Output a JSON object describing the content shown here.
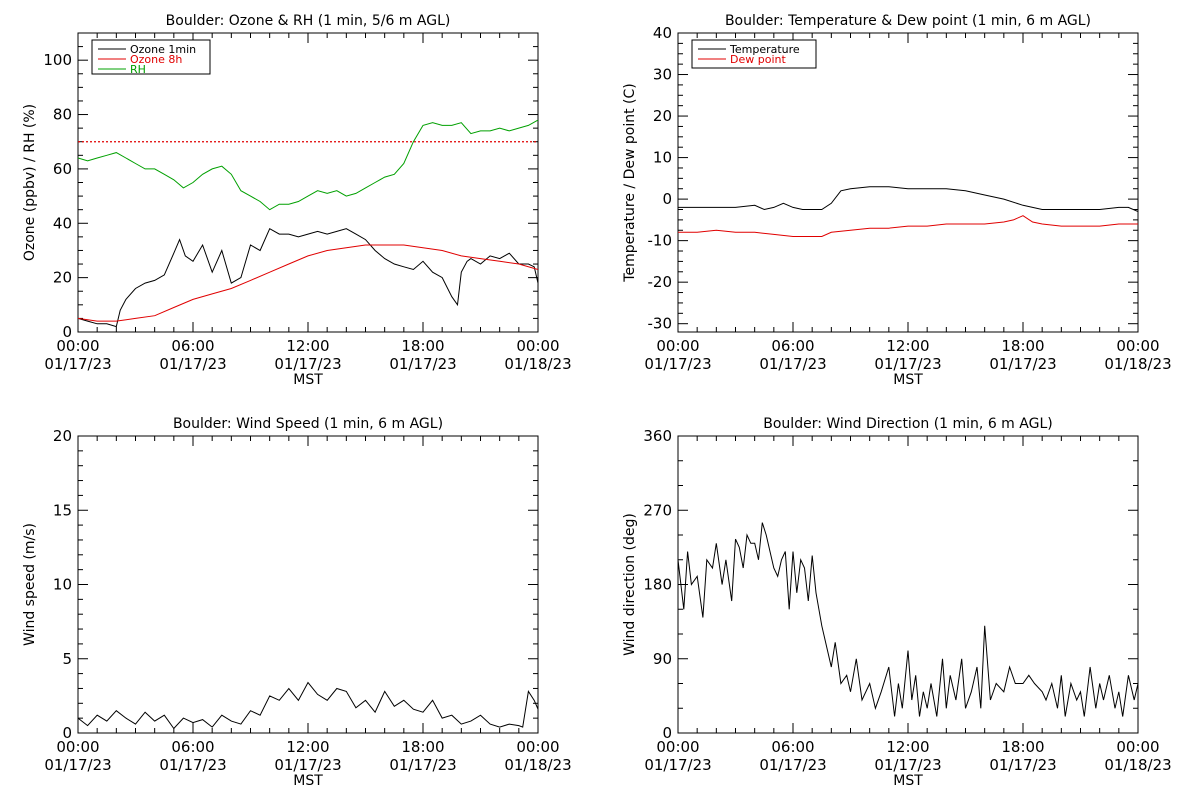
{
  "chart_data": [
    {
      "type": "line",
      "title": "Boulder: Ozone & RH (1 min, 5/6 m AGL)",
      "xlabel": "MST",
      "ylabel": "Ozone (ppbv) / RH (%)",
      "xlim": [
        0,
        24
      ],
      "ylim": [
        0,
        110
      ],
      "x_ticks": [
        0,
        6,
        12,
        18,
        24
      ],
      "x_tick_labels": [
        [
          "00:00",
          "01/17/23"
        ],
        [
          "06:00",
          "01/17/23"
        ],
        [
          "12:00",
          "01/17/23"
        ],
        [
          "18:00",
          "01/17/23"
        ],
        [
          "00:00",
          "01/18/23"
        ]
      ],
      "y_ticks": [
        0,
        20,
        40,
        60,
        80,
        100
      ],
      "legend_placement": "top-left",
      "reference_lines": [
        {
          "y": 70,
          "color": "#e00000",
          "style": "dotted"
        }
      ],
      "series": [
        {
          "name": "Ozone 1min",
          "color": "#000000",
          "x": [
            0,
            0.5,
            1,
            1.5,
            2,
            2.2,
            2.5,
            3,
            3.5,
            4,
            4.5,
            5,
            5.3,
            5.6,
            6,
            6.5,
            7,
            7.5,
            8,
            8.5,
            9,
            9.5,
            10,
            10.5,
            11,
            11.5,
            12,
            12.5,
            13,
            13.5,
            14,
            14.5,
            15,
            15.5,
            16,
            16.5,
            17,
            17.5,
            18,
            18.5,
            19,
            19.5,
            19.8,
            20,
            20.3,
            20.5,
            21,
            21.5,
            22,
            22.5,
            23,
            23.5,
            23.8,
            24
          ],
          "y": [
            5,
            4,
            3,
            3,
            2,
            8,
            12,
            16,
            18,
            19,
            21,
            29,
            34,
            28,
            26,
            32,
            22,
            30,
            18,
            20,
            32,
            30,
            38,
            36,
            36,
            35,
            36,
            37,
            36,
            37,
            38,
            36,
            34,
            30,
            27,
            25,
            24,
            23,
            26,
            22,
            20,
            13,
            10,
            22,
            26,
            27,
            25,
            28,
            27,
            29,
            25,
            25,
            24,
            18
          ]
        },
        {
          "name": "Ozone 8h",
          "color": "#e00000",
          "x": [
            0,
            1,
            2,
            3,
            4,
            5,
            6,
            7,
            8,
            9,
            10,
            11,
            12,
            13,
            14,
            15,
            16,
            17,
            18,
            19,
            20,
            21,
            22,
            23,
            24
          ],
          "y": [
            5,
            4,
            4,
            5,
            6,
            9,
            12,
            14,
            16,
            19,
            22,
            25,
            28,
            30,
            31,
            32,
            32,
            32,
            31,
            30,
            28,
            27,
            26,
            25,
            23
          ]
        },
        {
          "name": "RH",
          "color": "#00a000",
          "x": [
            0,
            0.5,
            1,
            1.5,
            2,
            2.5,
            3,
            3.5,
            4,
            4.5,
            5,
            5.5,
            6,
            6.5,
            7,
            7.5,
            8,
            8.5,
            9,
            9.5,
            10,
            10.5,
            11,
            11.5,
            12,
            12.5,
            13,
            13.5,
            14,
            14.5,
            15,
            15.5,
            16,
            16.5,
            17,
            17.5,
            18,
            18.5,
            19,
            19.5,
            20,
            20.5,
            21,
            21.5,
            22,
            22.5,
            23,
            23.5,
            24
          ],
          "y": [
            64,
            63,
            64,
            65,
            66,
            64,
            62,
            60,
            60,
            58,
            56,
            53,
            55,
            58,
            60,
            61,
            58,
            52,
            50,
            48,
            45,
            47,
            47,
            48,
            50,
            52,
            51,
            52,
            50,
            51,
            53,
            55,
            57,
            58,
            62,
            70,
            76,
            77,
            76,
            76,
            77,
            73,
            74,
            74,
            75,
            74,
            75,
            76,
            78
          ]
        }
      ]
    },
    {
      "type": "line",
      "title": "Boulder: Temperature & Dew point (1 min, 6 m AGL)",
      "xlabel": "MST",
      "ylabel": "Temperature / Dew point (C)",
      "xlim": [
        0,
        24
      ],
      "ylim": [
        -32,
        40
      ],
      "x_ticks": [
        0,
        6,
        12,
        18,
        24
      ],
      "x_tick_labels": [
        [
          "00:00",
          "01/17/23"
        ],
        [
          "06:00",
          "01/17/23"
        ],
        [
          "12:00",
          "01/17/23"
        ],
        [
          "18:00",
          "01/17/23"
        ],
        [
          "00:00",
          "01/18/23"
        ]
      ],
      "y_ticks": [
        -30,
        -20,
        -10,
        0,
        10,
        20,
        30,
        40
      ],
      "legend_placement": "top-left",
      "series": [
        {
          "name": "Temperature",
          "color": "#000000",
          "x": [
            0,
            1,
            2,
            3,
            4,
            4.5,
            5,
            5.5,
            6,
            6.5,
            7,
            7.5,
            8,
            8.5,
            9,
            10,
            11,
            12,
            13,
            14,
            15,
            16,
            17,
            18,
            19,
            20,
            21,
            22,
            23,
            23.5,
            24
          ],
          "y": [
            -2,
            -2,
            -2,
            -2,
            -1.5,
            -2.5,
            -2,
            -1,
            -2,
            -2.5,
            -2.5,
            -2.5,
            -1,
            2,
            2.5,
            3,
            3,
            2.5,
            2.5,
            2.5,
            2,
            1,
            0,
            -1.5,
            -2.5,
            -2.5,
            -2.5,
            -2.5,
            -2,
            -2,
            -3
          ]
        },
        {
          "name": "Dew point",
          "color": "#e00000",
          "x": [
            0,
            1,
            2,
            3,
            4,
            5,
            6,
            7,
            7.5,
            8,
            9,
            10,
            11,
            12,
            13,
            14,
            15,
            16,
            17,
            17.5,
            18,
            18.5,
            19,
            20,
            21,
            22,
            23,
            24
          ],
          "y": [
            -8,
            -8,
            -7.5,
            -8,
            -8,
            -8.5,
            -9,
            -9,
            -9,
            -8,
            -7.5,
            -7,
            -7,
            -6.5,
            -6.5,
            -6,
            -6,
            -6,
            -5.5,
            -5,
            -4,
            -5.5,
            -6,
            -6.5,
            -6.5,
            -6.5,
            -6,
            -6
          ]
        }
      ]
    },
    {
      "type": "line",
      "title": "Boulder: Wind Speed (1 min, 6 m AGL)",
      "xlabel": "MST",
      "ylabel": "Wind speed (m/s)",
      "xlim": [
        0,
        24
      ],
      "ylim": [
        0,
        20
      ],
      "x_ticks": [
        0,
        6,
        12,
        18,
        24
      ],
      "x_tick_labels": [
        [
          "00:00",
          "01/17/23"
        ],
        [
          "06:00",
          "01/17/23"
        ],
        [
          "12:00",
          "01/17/23"
        ],
        [
          "18:00",
          "01/17/23"
        ],
        [
          "00:00",
          "01/18/23"
        ]
      ],
      "y_ticks": [
        0,
        5,
        10,
        15,
        20
      ],
      "series": [
        {
          "name": "",
          "color": "#000000",
          "x": [
            0,
            0.5,
            1,
            1.5,
            2,
            2.5,
            3,
            3.5,
            4,
            4.5,
            5,
            5.5,
            6,
            6.5,
            7,
            7.5,
            8,
            8.5,
            9,
            9.5,
            10,
            10.5,
            11,
            11.5,
            12,
            12.5,
            13,
            13.5,
            14,
            14.5,
            15,
            15.5,
            16,
            16.5,
            17,
            17.5,
            18,
            18.5,
            19,
            19.5,
            20,
            20.5,
            21,
            21.5,
            22,
            22.5,
            23,
            23.2,
            23.5,
            23.8,
            24
          ],
          "y": [
            1,
            0.5,
            1.2,
            0.8,
            1.5,
            1,
            0.6,
            1.4,
            0.8,
            1.2,
            0.3,
            1,
            0.7,
            0.9,
            0.4,
            1.2,
            0.8,
            0.6,
            1.5,
            1.2,
            2.5,
            2.2,
            3,
            2.2,
            3.4,
            2.6,
            2.2,
            3,
            2.8,
            1.7,
            2.2,
            1.4,
            2.8,
            1.8,
            2.2,
            1.6,
            1.4,
            2.2,
            1,
            1.2,
            0.6,
            0.8,
            1.2,
            0.6,
            0.4,
            0.6,
            0.5,
            0.4,
            2.8,
            2.2,
            1.6
          ]
        }
      ]
    },
    {
      "type": "line",
      "title": "Boulder: Wind Direction (1 min, 6 m AGL)",
      "xlabel": "MST",
      "ylabel": "Wind direction (deg)",
      "xlim": [
        0,
        24
      ],
      "ylim": [
        0,
        360
      ],
      "x_ticks": [
        0,
        6,
        12,
        18,
        24
      ],
      "x_tick_labels": [
        [
          "00:00",
          "01/17/23"
        ],
        [
          "06:00",
          "01/17/23"
        ],
        [
          "12:00",
          "01/17/23"
        ],
        [
          "18:00",
          "01/17/23"
        ],
        [
          "00:00",
          "01/18/23"
        ]
      ],
      "y_ticks": [
        0,
        90,
        180,
        270,
        360
      ],
      "series": [
        {
          "name": "",
          "color": "#000000",
          "x": [
            0,
            0.3,
            0.5,
            0.7,
            1,
            1.3,
            1.5,
            1.8,
            2,
            2.3,
            2.5,
            2.8,
            3,
            3.2,
            3.4,
            3.6,
            3.8,
            4,
            4.2,
            4.4,
            4.6,
            4.8,
            5,
            5.2,
            5.4,
            5.6,
            5.8,
            6,
            6.2,
            6.4,
            6.6,
            6.8,
            7,
            7.2,
            7.5,
            7.8,
            8,
            8.2,
            8.5,
            8.8,
            9,
            9.3,
            9.6,
            10,
            10.3,
            10.6,
            11,
            11.3,
            11.5,
            11.7,
            12,
            12.2,
            12.4,
            12.6,
            12.8,
            13,
            13.2,
            13.5,
            13.8,
            14,
            14.2,
            14.5,
            14.8,
            15,
            15.3,
            15.6,
            15.8,
            16,
            16.3,
            16.6,
            17,
            17.3,
            17.6,
            18,
            18.3,
            18.6,
            19,
            19.2,
            19.5,
            19.8,
            20,
            20.2,
            20.5,
            20.8,
            21,
            21.2,
            21.5,
            21.8,
            22,
            22.2,
            22.5,
            22.8,
            23,
            23.2,
            23.5,
            23.8,
            24
          ],
          "y": [
            210,
            150,
            220,
            180,
            190,
            140,
            210,
            200,
            230,
            180,
            210,
            160,
            235,
            225,
            200,
            240,
            230,
            230,
            210,
            255,
            240,
            220,
            200,
            190,
            210,
            220,
            150,
            220,
            170,
            210,
            200,
            160,
            215,
            170,
            130,
            100,
            80,
            110,
            60,
            70,
            50,
            90,
            40,
            60,
            30,
            50,
            80,
            20,
            60,
            30,
            100,
            40,
            70,
            20,
            50,
            30,
            60,
            20,
            90,
            30,
            70,
            40,
            90,
            30,
            50,
            80,
            30,
            130,
            40,
            60,
            50,
            80,
            60,
            60,
            70,
            60,
            50,
            40,
            60,
            30,
            70,
            20,
            60,
            40,
            50,
            20,
            80,
            30,
            60,
            40,
            70,
            30,
            50,
            20,
            70,
            40,
            60
          ]
        }
      ]
    }
  ]
}
